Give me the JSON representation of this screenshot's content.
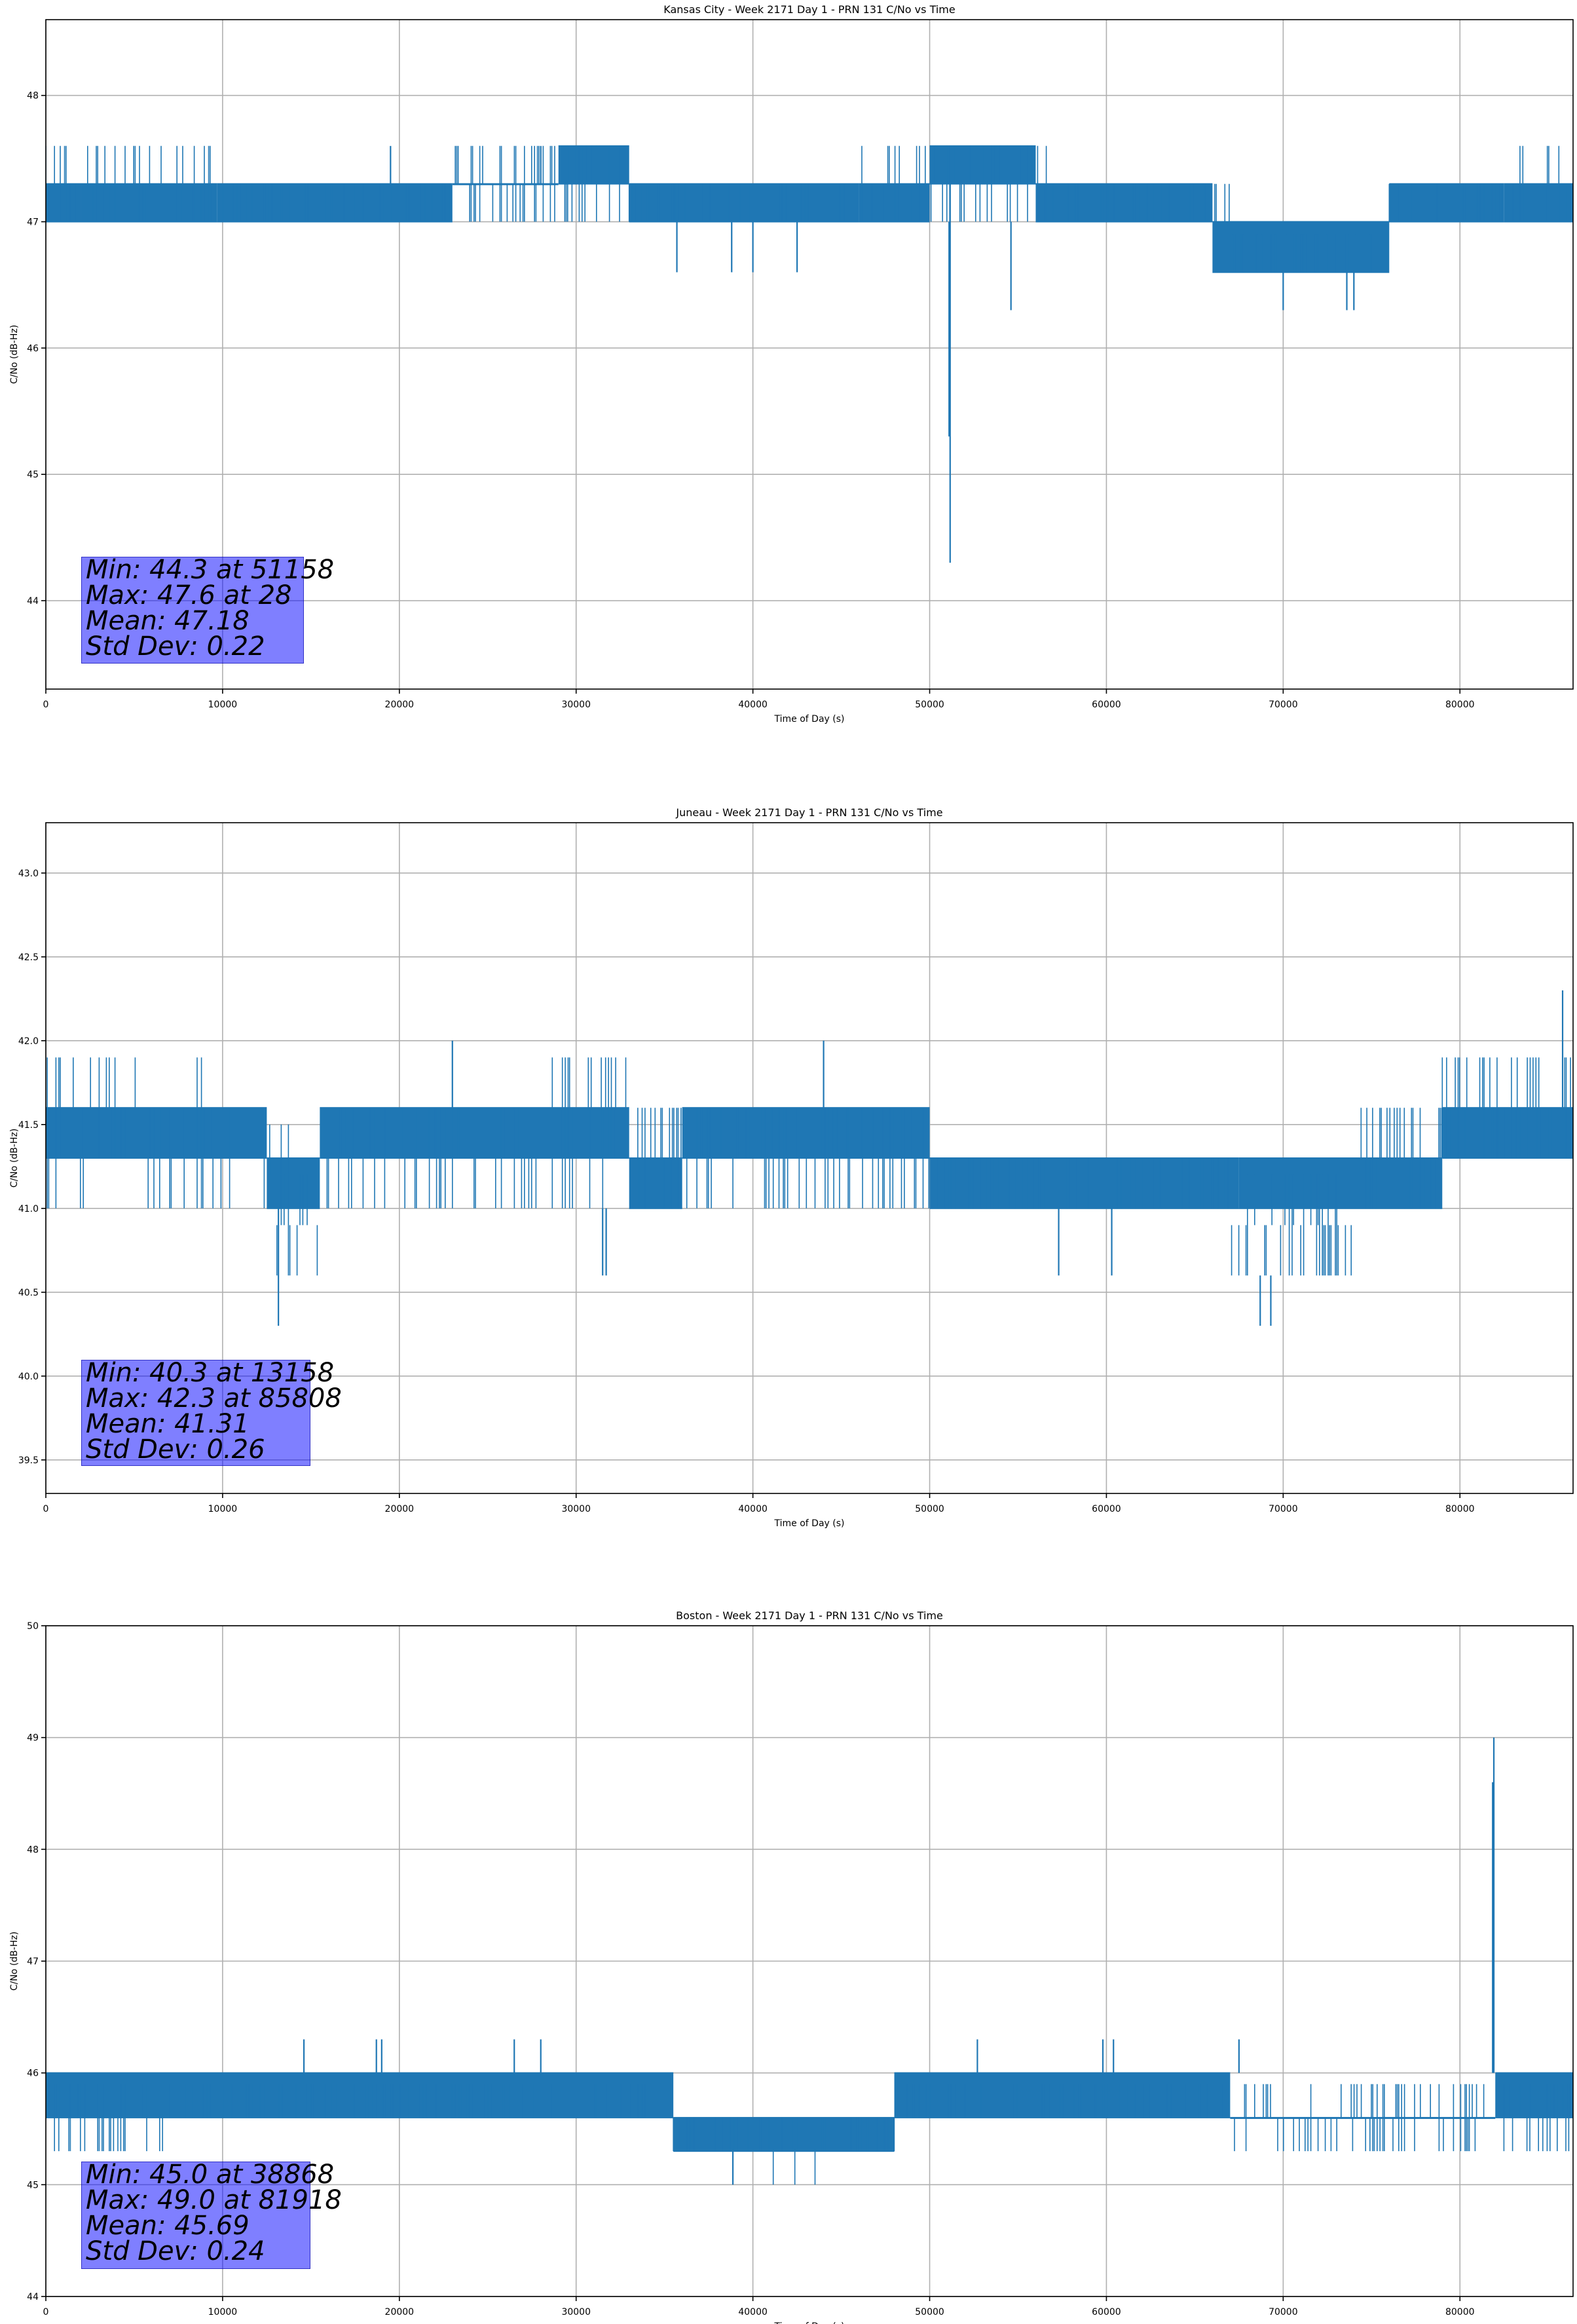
{
  "colors": {
    "series": "#1f77b4",
    "grid": "#b0b0b0",
    "stats_box": "#8080ff"
  },
  "chart_data": [
    {
      "type": "line",
      "title": "Kansas City - Week 2171 Day 1 - PRN 131 C/No vs Time",
      "xlabel": "Time of Day (s)",
      "ylabel": "C/No (dB-Hz)",
      "xlim": [
        0,
        86400
      ],
      "ylim": [
        43.3,
        48.6
      ],
      "xticks": [
        0,
        10000,
        20000,
        30000,
        40000,
        50000,
        60000,
        70000,
        80000
      ],
      "xtick_labels": [
        "0",
        "10000",
        "20000",
        "30000",
        "40000",
        "50000",
        "60000",
        "70000",
        "80000"
      ],
      "yticks": [
        44,
        45,
        46,
        47,
        48
      ],
      "ytick_labels": [
        "44",
        "45",
        "46",
        "47",
        "48"
      ],
      "grid": true,
      "stats": [
        "Min: 44.3 at 51158",
        "Max: 47.6 at 28",
        "Mean: 47.18",
        "Std Dev: 0.22"
      ],
      "series": [
        {
          "bands": [
            {
              "x": [
                0,
                2000
              ],
              "lo": 47.0,
              "hi": 47.3
            },
            {
              "x": [
                2000,
                9700
              ],
              "lo": 47.0,
              "hi": 47.3
            },
            {
              "x": [
                9700,
                23000
              ],
              "lo": 47.0,
              "hi": 47.3
            },
            {
              "x": [
                23000,
                29000
              ],
              "lo": 47.3,
              "hi": 47.3
            },
            {
              "x": [
                29000,
                33000
              ],
              "lo": 47.3,
              "hi": 47.6
            },
            {
              "x": [
                33000,
                46000
              ],
              "lo": 47.0,
              "hi": 47.3
            },
            {
              "x": [
                46000,
                50000
              ],
              "lo": 47.0,
              "hi": 47.3
            },
            {
              "x": [
                50000,
                56000
              ],
              "lo": 47.3,
              "hi": 47.6
            },
            {
              "x": [
                56000,
                66000
              ],
              "lo": 47.0,
              "hi": 47.3
            },
            {
              "x": [
                66000,
                76000
              ],
              "lo": 46.6,
              "hi": 47.0
            },
            {
              "x": [
                76000,
                82500
              ],
              "lo": 47.0,
              "hi": 47.3
            },
            {
              "x": [
                82500,
                86400
              ],
              "lo": 47.0,
              "hi": 47.3
            }
          ],
          "dense": [
            {
              "x": [
                0,
                9700
              ],
              "lo": 47.0,
              "hi": 47.6
            },
            {
              "x": [
                9700,
                23000
              ],
              "lo": 47.0,
              "hi": 47.3
            },
            {
              "x": [
                23000,
                33000
              ],
              "lo": 47.0,
              "hi": 47.6
            },
            {
              "x": [
                33000,
                46000
              ],
              "lo": 47.0,
              "hi": 47.3
            },
            {
              "x": [
                46000,
                57000
              ],
              "lo": 47.0,
              "hi": 47.6
            },
            {
              "x": [
                57000,
                67000
              ],
              "lo": 47.0,
              "hi": 47.3
            },
            {
              "x": [
                67000,
                76000
              ],
              "lo": 46.6,
              "hi": 47.0
            },
            {
              "x": [
                76000,
                82500
              ],
              "lo": 47.0,
              "hi": 47.3
            },
            {
              "x": [
                82500,
                86400
              ],
              "lo": 47.0,
              "hi": 47.6
            }
          ],
          "spikes": [
            {
              "x": 51158,
              "lo": 44.3,
              "hi": 47.3
            },
            {
              "x": 51100,
              "lo": 45.3,
              "hi": 47.0
            },
            {
              "x": 54600,
              "lo": 46.3,
              "hi": 47.0
            },
            {
              "x": 35700,
              "lo": 46.6,
              "hi": 47.0
            },
            {
              "x": 38800,
              "lo": 46.6,
              "hi": 47.0
            },
            {
              "x": 40000,
              "lo": 46.6,
              "hi": 47.0
            },
            {
              "x": 42500,
              "lo": 46.6,
              "hi": 47.0
            },
            {
              "x": 70000,
              "lo": 46.3,
              "hi": 46.6
            },
            {
              "x": 73600,
              "lo": 46.3,
              "hi": 46.6
            },
            {
              "x": 74000,
              "lo": 46.3,
              "hi": 46.6
            },
            {
              "x": 28000,
              "lo": 47.3,
              "hi": 47.6
            },
            {
              "x": 19500,
              "lo": 47.3,
              "hi": 47.6
            }
          ]
        }
      ]
    },
    {
      "type": "line",
      "title": "Juneau - Week 2171 Day 1 - PRN 131 C/No vs Time",
      "xlabel": "Time of Day (s)",
      "ylabel": "C/No (dB-Hz)",
      "xlim": [
        0,
        86400
      ],
      "ylim": [
        39.3,
        43.3
      ],
      "xticks": [
        0,
        10000,
        20000,
        30000,
        40000,
        50000,
        60000,
        70000,
        80000
      ],
      "xtick_labels": [
        "0",
        "10000",
        "20000",
        "30000",
        "40000",
        "50000",
        "60000",
        "70000",
        "80000"
      ],
      "yticks": [
        39.5,
        40.0,
        40.5,
        41.0,
        41.5,
        42.0,
        42.5,
        43.0
      ],
      "ytick_labels": [
        "39.5",
        "40.0",
        "40.5",
        "41.0",
        "41.5",
        "42.0",
        "42.5",
        "43.0"
      ],
      "grid": true,
      "stats": [
        "Min: 40.3 at 13158",
        "Max: 42.3 at 85808",
        "Mean: 41.31",
        "Std Dev: 0.26"
      ],
      "series": [
        {
          "bands": [
            {
              "x": [
                0,
                12500
              ],
              "lo": 41.3,
              "hi": 41.6
            },
            {
              "x": [
                12500,
                15500
              ],
              "lo": 41.0,
              "hi": 41.3
            },
            {
              "x": [
                15500,
                33000
              ],
              "lo": 41.3,
              "hi": 41.6
            },
            {
              "x": [
                33000,
                36000
              ],
              "lo": 41.0,
              "hi": 41.3
            },
            {
              "x": [
                36000,
                50000
              ],
              "lo": 41.3,
              "hi": 41.6
            },
            {
              "x": [
                50000,
                67500
              ],
              "lo": 41.0,
              "hi": 41.3
            },
            {
              "x": [
                67500,
                79000
              ],
              "lo": 41.0,
              "hi": 41.3
            },
            {
              "x": [
                79000,
                86400
              ],
              "lo": 41.3,
              "hi": 41.6
            }
          ],
          "dense": [
            {
              "x": [
                0,
                9500
              ],
              "lo": 41.0,
              "hi": 42.0
            },
            {
              "x": [
                9500,
                12500
              ],
              "lo": 41.0,
              "hi": 41.6
            },
            {
              "x": [
                12500,
                15500
              ],
              "lo": 40.6,
              "hi": 41.6
            },
            {
              "x": [
                15500,
                28000
              ],
              "lo": 41.0,
              "hi": 41.6
            },
            {
              "x": [
                28000,
                33000
              ],
              "lo": 41.0,
              "hi": 42.0
            },
            {
              "x": [
                33000,
                50000
              ],
              "lo": 41.0,
              "hi": 41.6
            },
            {
              "x": [
                50000,
                67000
              ],
              "lo": 41.0,
              "hi": 41.3
            },
            {
              "x": [
                67000,
                74000
              ],
              "lo": 40.6,
              "hi": 41.3
            },
            {
              "x": [
                74000,
                79000
              ],
              "lo": 41.0,
              "hi": 41.6
            },
            {
              "x": [
                79000,
                86400
              ],
              "lo": 41.3,
              "hi": 42.0
            }
          ],
          "spikes": [
            {
              "x": 13158,
              "lo": 40.3,
              "hi": 41.0
            },
            {
              "x": 85808,
              "lo": 41.6,
              "hi": 42.3
            },
            {
              "x": 68700,
              "lo": 40.3,
              "hi": 40.6
            },
            {
              "x": 69300,
              "lo": 40.3,
              "hi": 40.6
            },
            {
              "x": 31500,
              "lo": 40.6,
              "hi": 41.0
            },
            {
              "x": 31700,
              "lo": 40.6,
              "hi": 41.0
            },
            {
              "x": 57300,
              "lo": 40.6,
              "hi": 41.0
            },
            {
              "x": 60300,
              "lo": 40.6,
              "hi": 41.0
            },
            {
              "x": 23000,
              "lo": 41.6,
              "hi": 42.0
            },
            {
              "x": 44000,
              "lo": 41.6,
              "hi": 42.0
            }
          ]
        }
      ]
    },
    {
      "type": "line",
      "title": "Boston - Week 2171 Day 1 - PRN 131 C/No vs Time",
      "xlabel": "Time of Day (s)",
      "ylabel": "C/No (dB-Hz)",
      "xlim": [
        0,
        86400
      ],
      "ylim": [
        44.0,
        50.0
      ],
      "xticks": [
        0,
        10000,
        20000,
        30000,
        40000,
        50000,
        60000,
        70000,
        80000
      ],
      "xtick_labels": [
        "0",
        "10000",
        "20000",
        "30000",
        "40000",
        "50000",
        "60000",
        "70000",
        "80000"
      ],
      "yticks": [
        44,
        45,
        46,
        47,
        48,
        49,
        50
      ],
      "ytick_labels": [
        "44",
        "45",
        "46",
        "47",
        "48",
        "49",
        "50"
      ],
      "grid": true,
      "stats": [
        "Min: 45.0 at 38868",
        "Max: 49.0 at 81918",
        "Mean: 45.69",
        "Std Dev: 0.24"
      ],
      "series": [
        {
          "bands": [
            {
              "x": [
                0,
                35500
              ],
              "lo": 45.6,
              "hi": 46.0
            },
            {
              "x": [
                35500,
                48000
              ],
              "lo": 45.3,
              "hi": 45.6
            },
            {
              "x": [
                48000,
                67000
              ],
              "lo": 45.6,
              "hi": 46.0
            },
            {
              "x": [
                67000,
                82000
              ],
              "lo": 45.6,
              "hi": 45.6
            },
            {
              "x": [
                82000,
                86400
              ],
              "lo": 45.6,
              "hi": 46.0
            }
          ],
          "dense": [
            {
              "x": [
                0,
                7000
              ],
              "lo": 45.3,
              "hi": 46.0
            },
            {
              "x": [
                7000,
                35500
              ],
              "lo": 45.6,
              "hi": 46.0
            },
            {
              "x": [
                35500,
                40500
              ],
              "lo": 45.3,
              "hi": 45.6
            },
            {
              "x": [
                40500,
                44000
              ],
              "lo": 45.0,
              "hi": 45.6
            },
            {
              "x": [
                44000,
                48000
              ],
              "lo": 45.3,
              "hi": 45.6
            },
            {
              "x": [
                48000,
                67000
              ],
              "lo": 45.6,
              "hi": 46.0
            },
            {
              "x": [
                67000,
                86400
              ],
              "lo": 45.3,
              "hi": 46.0
            }
          ],
          "spikes": [
            {
              "x": 81918,
              "lo": 46.0,
              "hi": 49.0
            },
            {
              "x": 81850,
              "lo": 46.0,
              "hi": 48.6
            },
            {
              "x": 38868,
              "lo": 45.0,
              "hi": 45.3
            },
            {
              "x": 14600,
              "lo": 46.0,
              "hi": 46.3
            },
            {
              "x": 18700,
              "lo": 46.0,
              "hi": 46.3
            },
            {
              "x": 19000,
              "lo": 46.0,
              "hi": 46.3
            },
            {
              "x": 26500,
              "lo": 46.0,
              "hi": 46.3
            },
            {
              "x": 28000,
              "lo": 46.0,
              "hi": 46.3
            },
            {
              "x": 52700,
              "lo": 46.0,
              "hi": 46.3
            },
            {
              "x": 59800,
              "lo": 46.0,
              "hi": 46.3
            },
            {
              "x": 60400,
              "lo": 46.0,
              "hi": 46.3
            },
            {
              "x": 67500,
              "lo": 46.0,
              "hi": 46.3
            }
          ]
        }
      ]
    }
  ]
}
